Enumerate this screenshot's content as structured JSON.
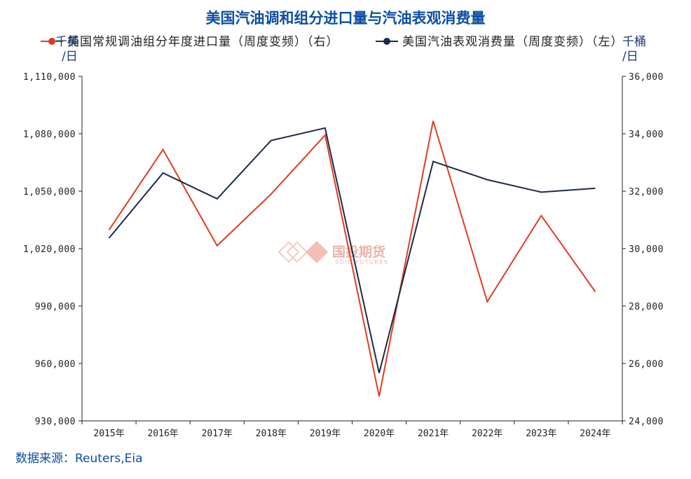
{
  "title": "美国汽油调和组分进口量与汽油表观消费量",
  "source": "数据来源：Reuters,Eia",
  "watermark": {
    "text": "国投期货",
    "sub": "SDIC FUTURES"
  },
  "colors": {
    "series_red": "#e03c20",
    "series_navy": "#1c2a4a",
    "title": "#0b4ea2"
  },
  "chart_data": {
    "type": "line",
    "title": "美国汽油调和组分进口量与汽油表观消费量",
    "x": [
      "2015年",
      "2016年",
      "2017年",
      "2018年",
      "2019年",
      "2020年",
      "2021年",
      "2022年",
      "2023年",
      "2024年"
    ],
    "left_axis": {
      "unit": "千桶/日",
      "ylim": [
        930000,
        1110000
      ],
      "ticks": [
        930000,
        960000,
        990000,
        1020000,
        1050000,
        1080000,
        1110000
      ],
      "tick_labels": [
        "930,000",
        "960,000",
        "990,000",
        "1,020,000",
        "1,050,000",
        "1,080,000",
        "1,110,000"
      ]
    },
    "right_axis": {
      "unit": "千桶/日",
      "ylim": [
        24000,
        36000
      ],
      "ticks": [
        24000,
        26000,
        28000,
        30000,
        32000,
        34000,
        36000
      ],
      "tick_labels": [
        "24,000",
        "26,000",
        "28,000",
        "30,000",
        "32,000",
        "34,000",
        "36,000"
      ]
    },
    "series": [
      {
        "name": "美国常规调油组分年度进口量（周度变频）（右）",
        "axis": "right",
        "color": "#e03c20",
        "values": [
          30650,
          33450,
          30100,
          31900,
          33950,
          24850,
          34450,
          28150,
          31150,
          28500
        ]
      },
      {
        "name": "美国汽油表观消费量（周度变频）（左）",
        "axis": "left",
        "color": "#1c2a4a",
        "values": [
          1025500,
          1059500,
          1046000,
          1076500,
          1083000,
          955000,
          1065500,
          1056000,
          1049500,
          1051500
        ]
      }
    ],
    "legend": "top",
    "grid": false
  }
}
